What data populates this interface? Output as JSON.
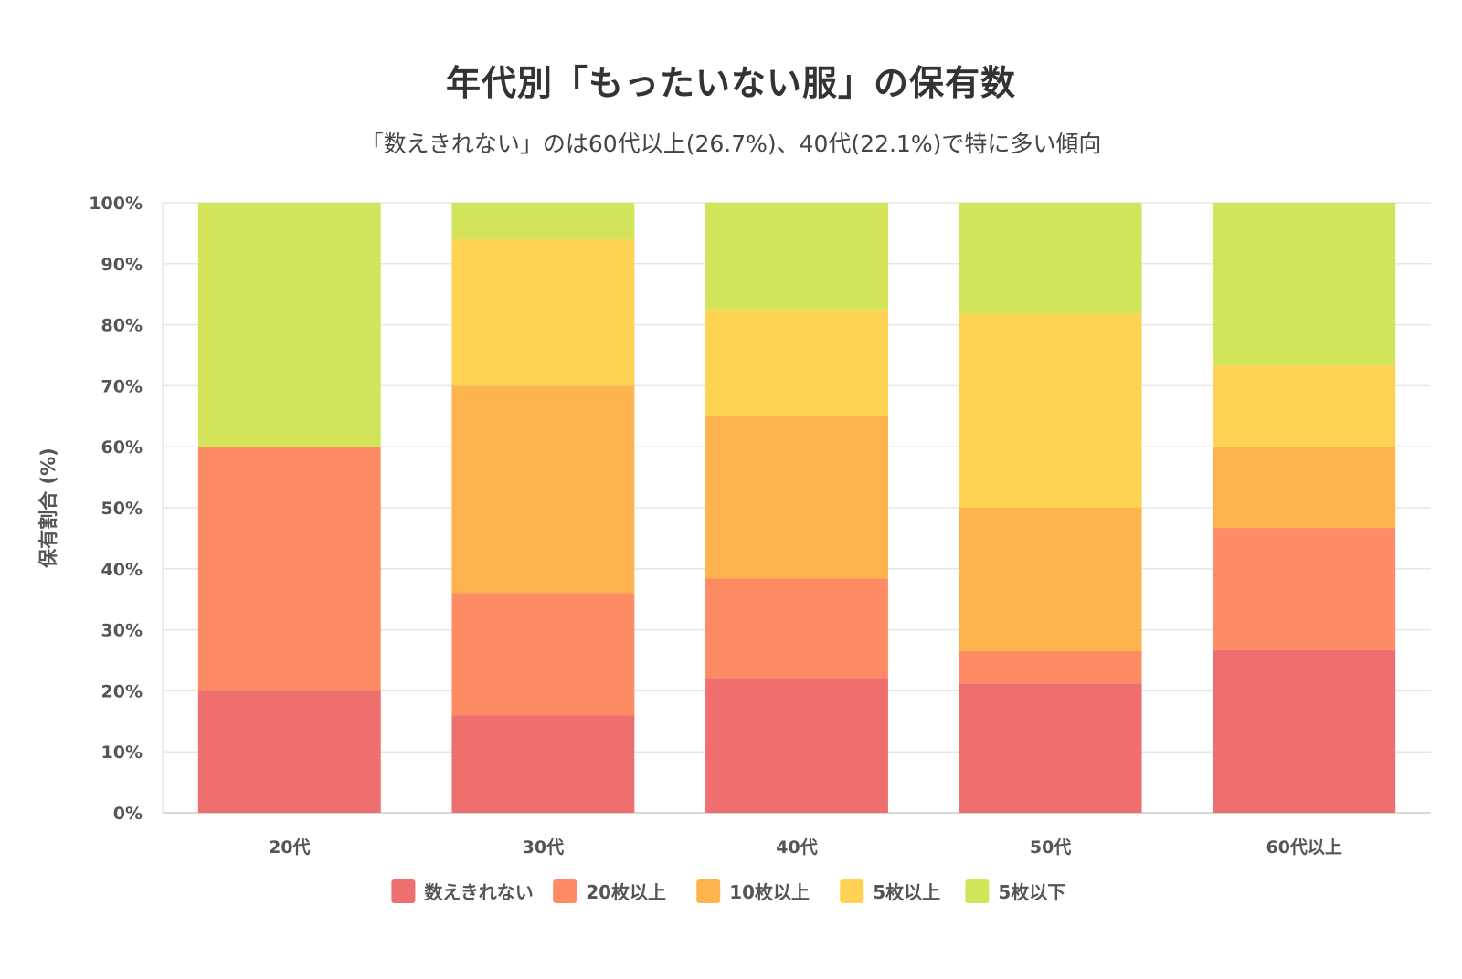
{
  "chart_data": {
    "type": "bar",
    "stacked": true,
    "title": "年代別「もったいない服」の保有数",
    "subtitle": "「数えきれない」のは60代以上(26.7%)、40代(22.1%)で特に多い傾向",
    "xlabel": "",
    "ylabel": "保有割合 (%)",
    "ylim": [
      0,
      100
    ],
    "yticks": [
      0,
      10,
      20,
      30,
      40,
      50,
      60,
      70,
      80,
      90,
      100
    ],
    "ytick_suffix": "%",
    "grid": true,
    "legend_position": "bottom",
    "categories": [
      "20代",
      "30代",
      "40代",
      "50代",
      "60代以上"
    ],
    "series": [
      {
        "name": "数えきれない",
        "color": "#ef6f6f",
        "values": [
          20,
          16,
          22.1,
          21.2,
          26.7
        ]
      },
      {
        "name": "20枚以上",
        "color": "#fd8b64",
        "values": [
          40,
          20,
          16.3,
          5.3,
          20.0
        ]
      },
      {
        "name": "10枚以上",
        "color": "#fdb44e",
        "values": [
          0,
          34,
          26.6,
          23.5,
          13.3
        ]
      },
      {
        "name": "5枚以上",
        "color": "#fed354",
        "values": [
          0,
          24,
          17.5,
          31.8,
          13.3
        ]
      },
      {
        "name": "5枚以下",
        "color": "#d4e45a",
        "values": [
          40,
          6,
          17.5,
          18.2,
          26.7
        ]
      }
    ]
  }
}
